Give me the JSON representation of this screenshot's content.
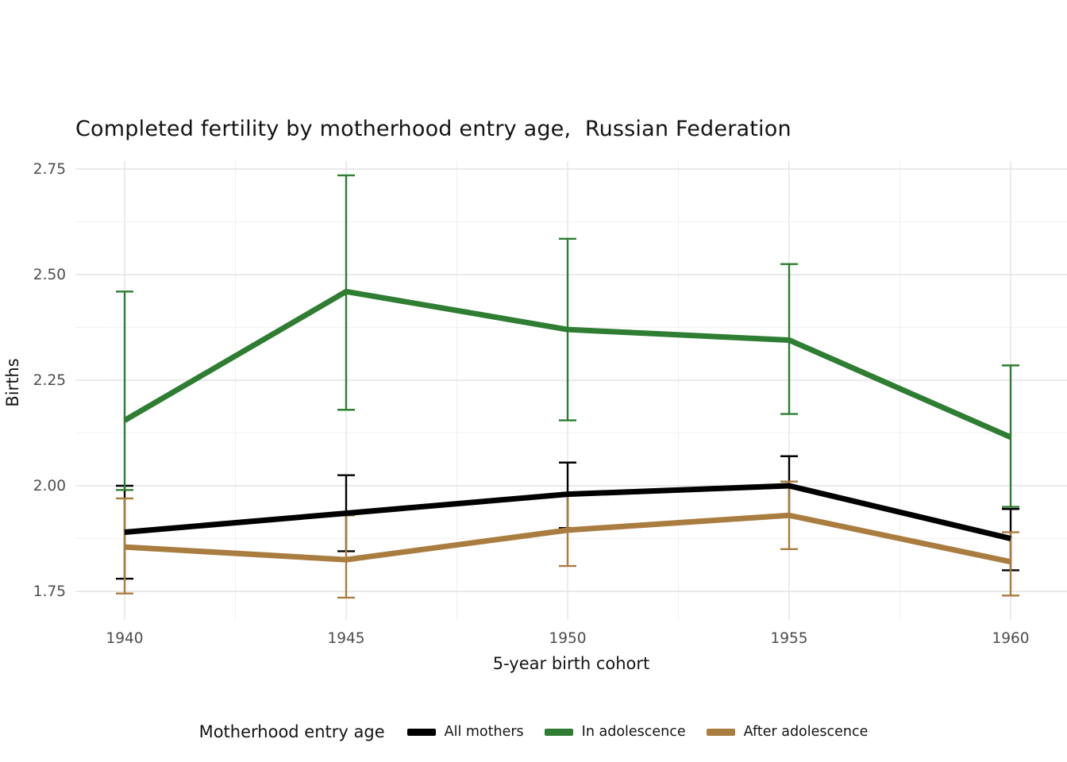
{
  "chart_data": {
    "type": "line",
    "title": "Completed fertility by motherhood entry age,  Russian Federation",
    "xlabel": "5-year birth cohort",
    "ylabel": "Births",
    "legend_title": "Motherhood entry age",
    "legend_position": "bottom",
    "grid": true,
    "background": "#ffffff",
    "categories": [
      "1940",
      "1945",
      "1950",
      "1955",
      "1960"
    ],
    "ylim": [
      1.75,
      2.75
    ],
    "yticks": [
      "1.75",
      "2.00",
      "2.25",
      "2.50",
      "2.75"
    ],
    "error_bars": true,
    "series": [
      {
        "name": "All mothers",
        "color": "#000000",
        "values": [
          1.89,
          1.935,
          1.98,
          2.0,
          1.875
        ],
        "ci_low": [
          1.78,
          1.845,
          1.9,
          1.93,
          1.8
        ],
        "ci_high": [
          2.0,
          2.025,
          2.055,
          2.07,
          1.945
        ]
      },
      {
        "name": "In adolescence",
        "color": "#2e7d32",
        "values": [
          2.155,
          2.46,
          2.37,
          2.345,
          2.115
        ],
        "ci_low": [
          1.99,
          2.18,
          2.155,
          2.17,
          1.95
        ],
        "ci_high": [
          2.46,
          2.735,
          2.585,
          2.525,
          2.285
        ]
      },
      {
        "name": "After adolescence",
        "color": "#a97c3f",
        "values": [
          1.855,
          1.825,
          1.895,
          1.93,
          1.82
        ],
        "ci_low": [
          1.745,
          1.735,
          1.81,
          1.85,
          1.74
        ],
        "ci_high": [
          1.97,
          1.93,
          1.98,
          2.01,
          1.89
        ]
      }
    ]
  }
}
